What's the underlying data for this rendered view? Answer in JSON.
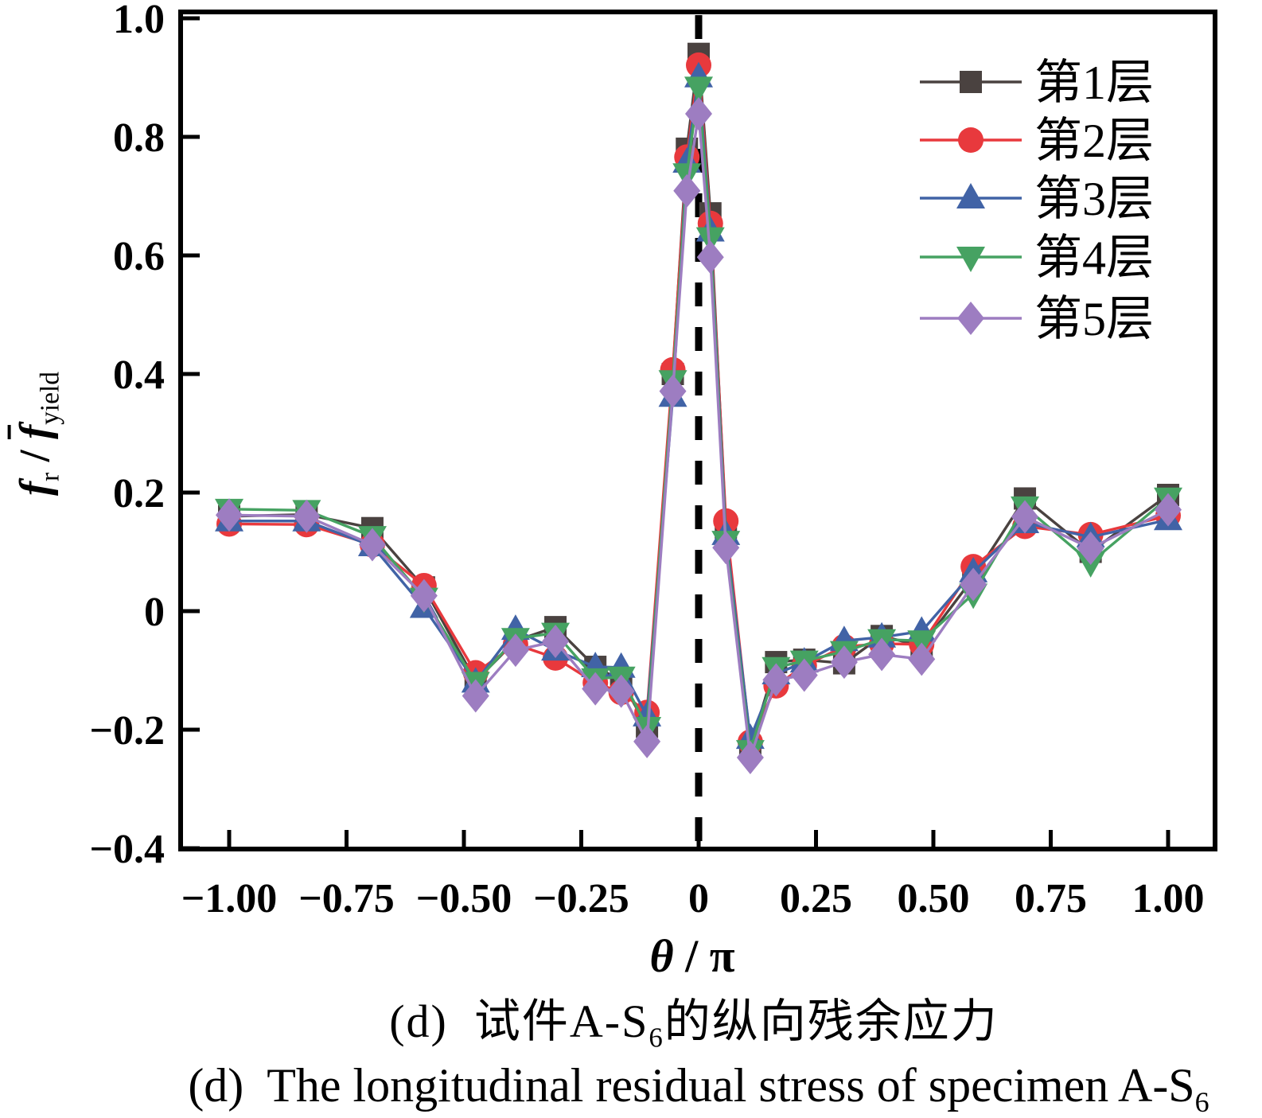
{
  "figure": {
    "background": "#ffffff",
    "frame_color": "#000000"
  },
  "ylabel_parts": {
    "f": "f",
    "sub_r": "r",
    "slash": " / ",
    "fbar": "f",
    "sub_yield": "yield"
  },
  "xlabel_parts": {
    "theta": "θ",
    "slash": " / ",
    "pi": "π"
  },
  "captions": {
    "zh": {
      "prefix": "(d)",
      "gap": "  ",
      "main": "试件A-S",
      "sub": "6",
      "suffix": "的纵向残余应力"
    },
    "en": {
      "prefix": "(d)",
      "gap": "  ",
      "main": "The longitudinal residual stress of specimen A-S",
      "sub": "6"
    }
  },
  "chart_data": {
    "type": "line",
    "title": "",
    "xlabel": "θ / π",
    "ylabel": "f_r / f̄_yield",
    "xlim": [
      -1.1,
      1.1
    ],
    "ylim": [
      -0.4,
      1.0
    ],
    "grid": false,
    "legend_position": "top-right",
    "zero_line": {
      "x": 0,
      "style": "dashed",
      "color": "#000000"
    },
    "x_ticks": [
      {
        "value": -1.0,
        "label": "−1.00"
      },
      {
        "value": -0.75,
        "label": "−0.75"
      },
      {
        "value": -0.5,
        "label": "−0.50"
      },
      {
        "value": -0.25,
        "label": "−0.25"
      },
      {
        "value": 0,
        "label": "0"
      },
      {
        "value": 0.25,
        "label": "0.25"
      },
      {
        "value": 0.5,
        "label": "0.50"
      },
      {
        "value": 0.75,
        "label": "0.75"
      },
      {
        "value": 1.0,
        "label": "1.00"
      }
    ],
    "y_ticks": [
      {
        "value": 1.0,
        "label": "1.0"
      },
      {
        "value": 0.8,
        "label": "0.8"
      },
      {
        "value": 0.6,
        "label": "0.6"
      },
      {
        "value": 0.4,
        "label": "0.4"
      },
      {
        "value": 0.2,
        "label": "0.2"
      },
      {
        "value": 0.0,
        "label": "0"
      },
      {
        "value": -0.2,
        "label": "−0.2"
      },
      {
        "value": -0.4,
        "label": "−0.4"
      }
    ],
    "x": [
      -1.0,
      -0.835,
      -0.695,
      -0.585,
      -0.475,
      -0.39,
      -0.305,
      -0.22,
      -0.165,
      -0.11,
      -0.055,
      -0.025,
      0.0,
      0.025,
      0.058,
      0.11,
      0.165,
      0.225,
      0.31,
      0.39,
      0.475,
      0.585,
      0.695,
      0.835,
      1.0
    ],
    "series": [
      {
        "name": "第1层",
        "color": "#4a4240",
        "marker": "square",
        "values": [
          0.16,
          0.163,
          0.14,
          0.04,
          -0.118,
          -0.05,
          -0.027,
          -0.094,
          -0.117,
          -0.195,
          0.4,
          0.78,
          0.94,
          0.671,
          0.141,
          -0.231,
          -0.086,
          -0.082,
          -0.088,
          -0.042,
          -0.059,
          0.056,
          0.19,
          0.1,
          0.196
        ]
      },
      {
        "name": "第2层",
        "color": "#e8393d",
        "marker": "circle",
        "values": [
          0.147,
          0.146,
          0.112,
          0.043,
          -0.104,
          -0.056,
          -0.079,
          -0.121,
          -0.137,
          -0.171,
          0.407,
          0.766,
          0.921,
          0.654,
          0.152,
          -0.221,
          -0.126,
          -0.092,
          -0.06,
          -0.055,
          -0.056,
          0.075,
          0.143,
          0.129,
          0.161
        ]
      },
      {
        "name": "第3层",
        "color": "#4163a6",
        "marker": "triangle-up",
        "values": [
          0.152,
          0.152,
          0.11,
          0.006,
          -0.12,
          -0.031,
          -0.066,
          -0.094,
          -0.095,
          -0.177,
          0.362,
          0.757,
          0.901,
          0.641,
          0.129,
          -0.215,
          -0.106,
          -0.086,
          -0.05,
          -0.044,
          -0.034,
          0.066,
          0.149,
          0.125,
          0.154
        ]
      },
      {
        "name": "第4层",
        "color": "#46a262",
        "marker": "triangle-down",
        "values": [
          0.172,
          0.17,
          0.126,
          0.022,
          -0.12,
          -0.046,
          -0.037,
          -0.114,
          -0.111,
          -0.196,
          0.389,
          0.738,
          0.884,
          0.63,
          0.118,
          -0.235,
          -0.095,
          -0.084,
          -0.068,
          -0.048,
          -0.05,
          0.029,
          0.176,
          0.082,
          0.191
        ]
      },
      {
        "name": "第5层",
        "color": "#9d7dc1",
        "marker": "diamond",
        "values": [
          0.162,
          0.16,
          0.112,
          0.026,
          -0.143,
          -0.066,
          -0.051,
          -0.131,
          -0.135,
          -0.22,
          0.371,
          0.709,
          0.839,
          0.597,
          0.107,
          -0.247,
          -0.116,
          -0.108,
          -0.086,
          -0.073,
          -0.081,
          0.045,
          0.159,
          0.106,
          0.171
        ]
      }
    ]
  }
}
